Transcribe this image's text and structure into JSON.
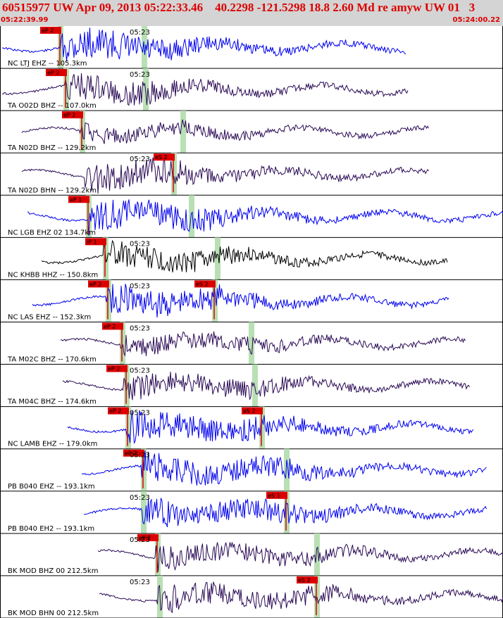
{
  "header": {
    "title": "60515977 UW Apr 09, 2013 05:22:33.46    40.2298 -121.5298 18.8 2.60 Md re amyw UW 01   3",
    "time_start": "05:22:39.99",
    "time_end": "05:24:00.22"
  },
  "colors": {
    "title_bg": "#d4d4d4",
    "title_text": "#dd0000",
    "trace_blue": "#0000ee",
    "trace_purple": "#2a0a55",
    "trace_black": "#000000",
    "pick_red": "#dd0000",
    "phase_green": "#b9e0b4",
    "divider": "#000000"
  },
  "channels": [
    {
      "label": "NC LTJ EHZ -- 105.3km",
      "color": "blue",
      "p_label": "eP 2",
      "s_label": "",
      "minute_tick": "05:23",
      "amp": 1.0
    },
    {
      "label": "TA O02D BHZ -- 107.0km",
      "color": "purple",
      "p_label": "eP 2",
      "s_label": "",
      "minute_tick": "05:23",
      "amp": 0.8
    },
    {
      "label": "TA N02D BHZ -- 129.2km",
      "color": "purple",
      "p_label": "eP 2",
      "s_label": "",
      "minute_tick": "",
      "amp": 0.5
    },
    {
      "label": "TA N02D BHN -- 129.2km",
      "color": "purple",
      "p_label": "",
      "s_label": "eS 2",
      "minute_tick": "05:23",
      "amp": 0.9
    },
    {
      "label": "NC LGB EHZ 02 134.7km",
      "color": "blue",
      "p_label": "eP 1",
      "s_label": "",
      "minute_tick": "",
      "amp": 1.0
    },
    {
      "label": "NC KHBB HHZ -- 150.8km",
      "color": "black",
      "p_label": "iP 1",
      "s_label": "",
      "minute_tick": "05:23",
      "amp": 0.8
    },
    {
      "label": "NC LAS EHZ -- 152.3km",
      "color": "blue",
      "p_label": "eP 2",
      "s_label": "eS 2",
      "minute_tick": "05:23",
      "amp": 1.0
    },
    {
      "label": "TA M02C BHZ -- 170.6km",
      "color": "purple",
      "p_label": "eP 2",
      "s_label": "",
      "minute_tick": "05:23",
      "amp": 0.7
    },
    {
      "label": "TA M04C BHZ -- 174.6km",
      "color": "purple",
      "p_label": "eP 2",
      "s_label": "",
      "minute_tick": "05:23",
      "amp": 0.8
    },
    {
      "label": "NC LAMB EHZ -- 179.0km",
      "color": "blue",
      "p_label": "eP 2",
      "s_label": "eS 2",
      "minute_tick": "05:23",
      "amp": 1.0
    },
    {
      "label": "PB B040 EHZ -- 193.1km",
      "color": "blue",
      "p_label": "eP 2",
      "s_label": "",
      "minute_tick": "05:23",
      "amp": 1.0
    },
    {
      "label": "PB B040 EH2 -- 193.1km",
      "color": "blue",
      "p_label": "",
      "s_label": "eS 1",
      "minute_tick": "05:23",
      "amp": 1.0
    },
    {
      "label": "BK MOD BHZ 00 212.5km",
      "color": "purple",
      "p_label": "eP 2",
      "s_label": "",
      "minute_tick": "05:23",
      "amp": 0.8
    },
    {
      "label": "BK MOD BHN 00 212.5km",
      "color": "purple",
      "p_label": "",
      "s_label": "eS 2",
      "minute_tick": "05:23",
      "amp": 0.9
    }
  ]
}
